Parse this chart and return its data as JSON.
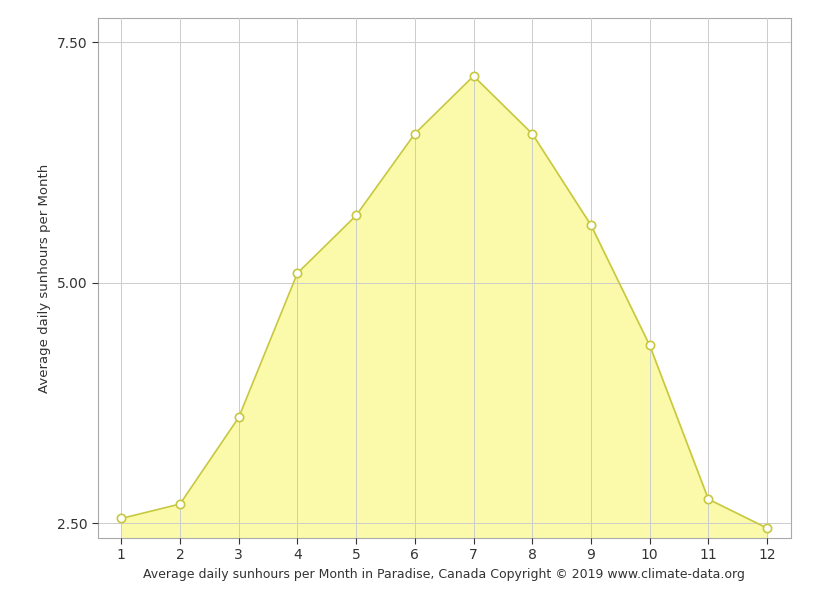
{
  "x": [
    1,
    2,
    3,
    4,
    5,
    6,
    7,
    8,
    9,
    10,
    11,
    12
  ],
  "y": [
    2.55,
    2.7,
    3.6,
    5.1,
    5.7,
    6.55,
    7.15,
    6.55,
    5.6,
    4.35,
    2.75,
    2.45
  ],
  "fill_color": "#FAFAAA",
  "line_color": "#C8C840",
  "marker_color": "white",
  "marker_edge_color": "#C8C840",
  "marker_size": 6,
  "xlabel": "Average daily sunhours per Month in Paradise, Canada Copyright © 2019 www.climate-data.org",
  "ylabel": "Average daily sunhours per Month",
  "xlim": [
    0.6,
    12.4
  ],
  "ylim": [
    2.35,
    7.75
  ],
  "xticks": [
    1,
    2,
    3,
    4,
    5,
    6,
    7,
    8,
    9,
    10,
    11,
    12
  ],
  "yticks": [
    2.5,
    5.0,
    7.5
  ],
  "grid_color": "#cccccc",
  "background_color": "#ffffff",
  "xlabel_fontsize": 9,
  "ylabel_fontsize": 9.5,
  "tick_fontsize": 10,
  "fig_width": 8.15,
  "fig_height": 6.11,
  "fill_bottom": 2.35
}
